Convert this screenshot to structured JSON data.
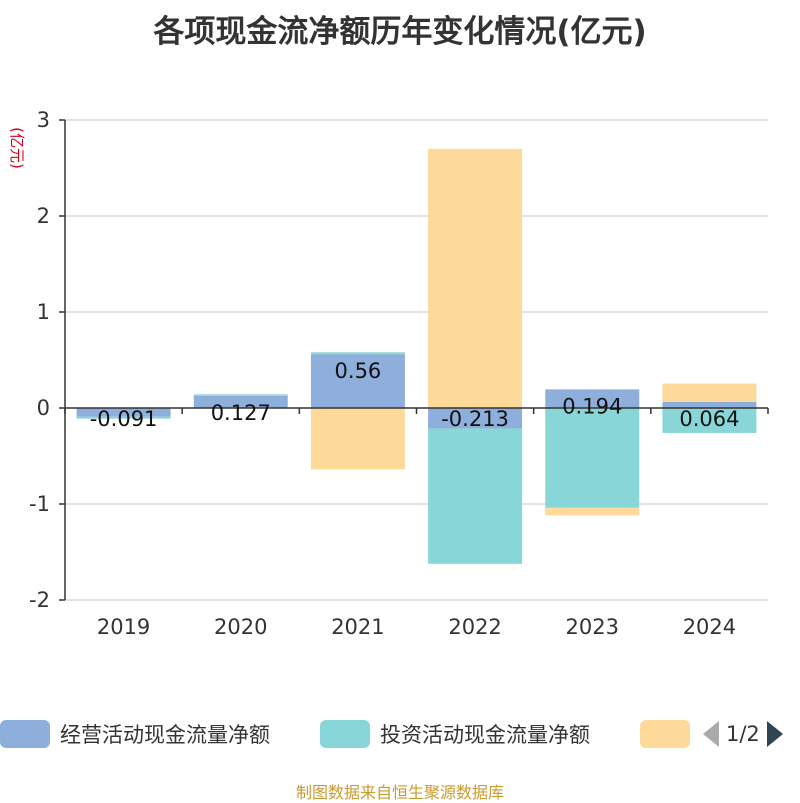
{
  "title": "各项现金流净额历年变化情况(亿元)",
  "chart_data": {
    "type": "bar",
    "stacked": true,
    "ylabel": "(亿元)",
    "ylim": [
      -2,
      3
    ],
    "yticks": [
      3,
      2,
      1,
      0,
      -1,
      -2
    ],
    "categories": [
      "2019",
      "2020",
      "2021",
      "2022",
      "2023",
      "2024"
    ],
    "series": [
      {
        "name": "经营活动现金流量净额",
        "color": "#8eaedb",
        "values": [
          -0.091,
          0.127,
          0.56,
          -0.213,
          0.194,
          0.064
        ],
        "labels": [
          "-0.091",
          "0.127",
          "0.56",
          "-0.213",
          "0.194",
          "0.064"
        ]
      },
      {
        "name": "投资活动现金流量净额",
        "color": "#89d6d8",
        "values": [
          -0.02,
          0.015,
          0.02,
          -1.41,
          -1.04,
          -0.26
        ]
      },
      {
        "name": "",
        "color": "#fdd99a",
        "values": [
          0.0,
          0.0,
          -0.64,
          2.7,
          -0.08,
          0.19
        ]
      }
    ]
  },
  "legend": {
    "items": [
      "经营活动现金流量净额",
      "投资活动现金流量净额",
      ""
    ],
    "page": "1/2"
  },
  "source": "制图数据来自恒生聚源数据库"
}
